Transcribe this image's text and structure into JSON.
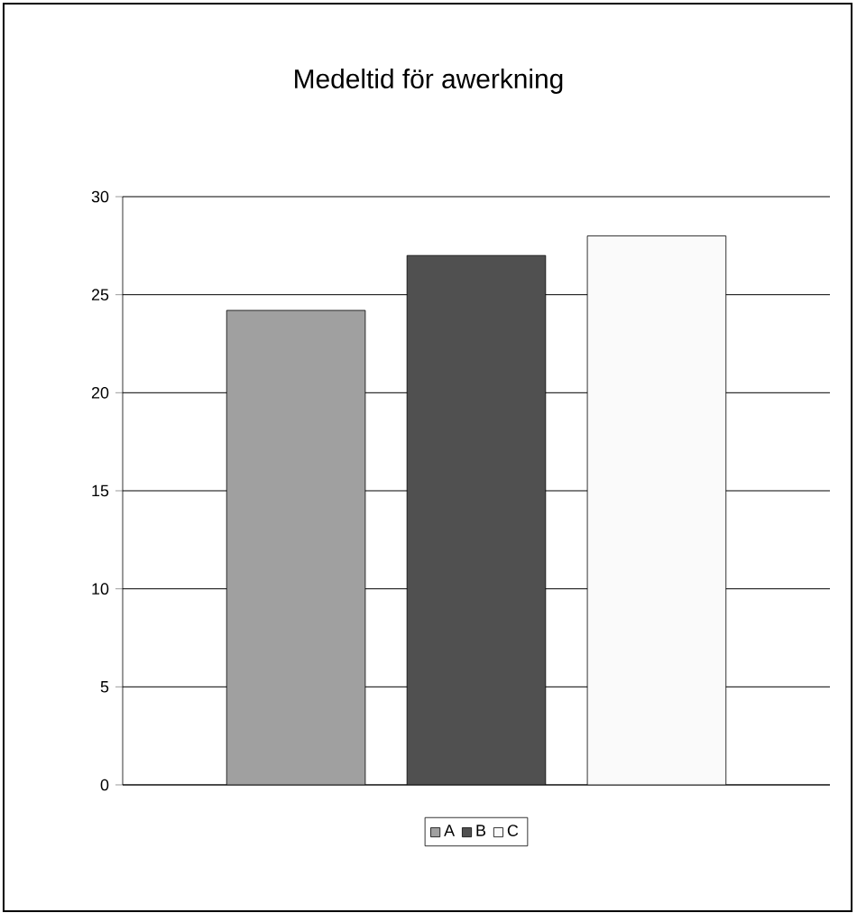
{
  "chart_data": {
    "type": "bar",
    "title": "Medeltid för awerkning",
    "categories": [
      null
    ],
    "series": [
      {
        "name": "A",
        "color": "#a0a0a0",
        "values": [
          24.2
        ]
      },
      {
        "name": "B",
        "color": "#505050",
        "values": [
          27
        ]
      },
      {
        "name": "C",
        "color": "#fafafa",
        "values": [
          28
        ]
      }
    ],
    "ylim": [
      0,
      30
    ],
    "yticks": [
      0,
      5,
      10,
      15,
      20,
      25,
      30
    ],
    "grid": "y",
    "legend": "bottom"
  }
}
